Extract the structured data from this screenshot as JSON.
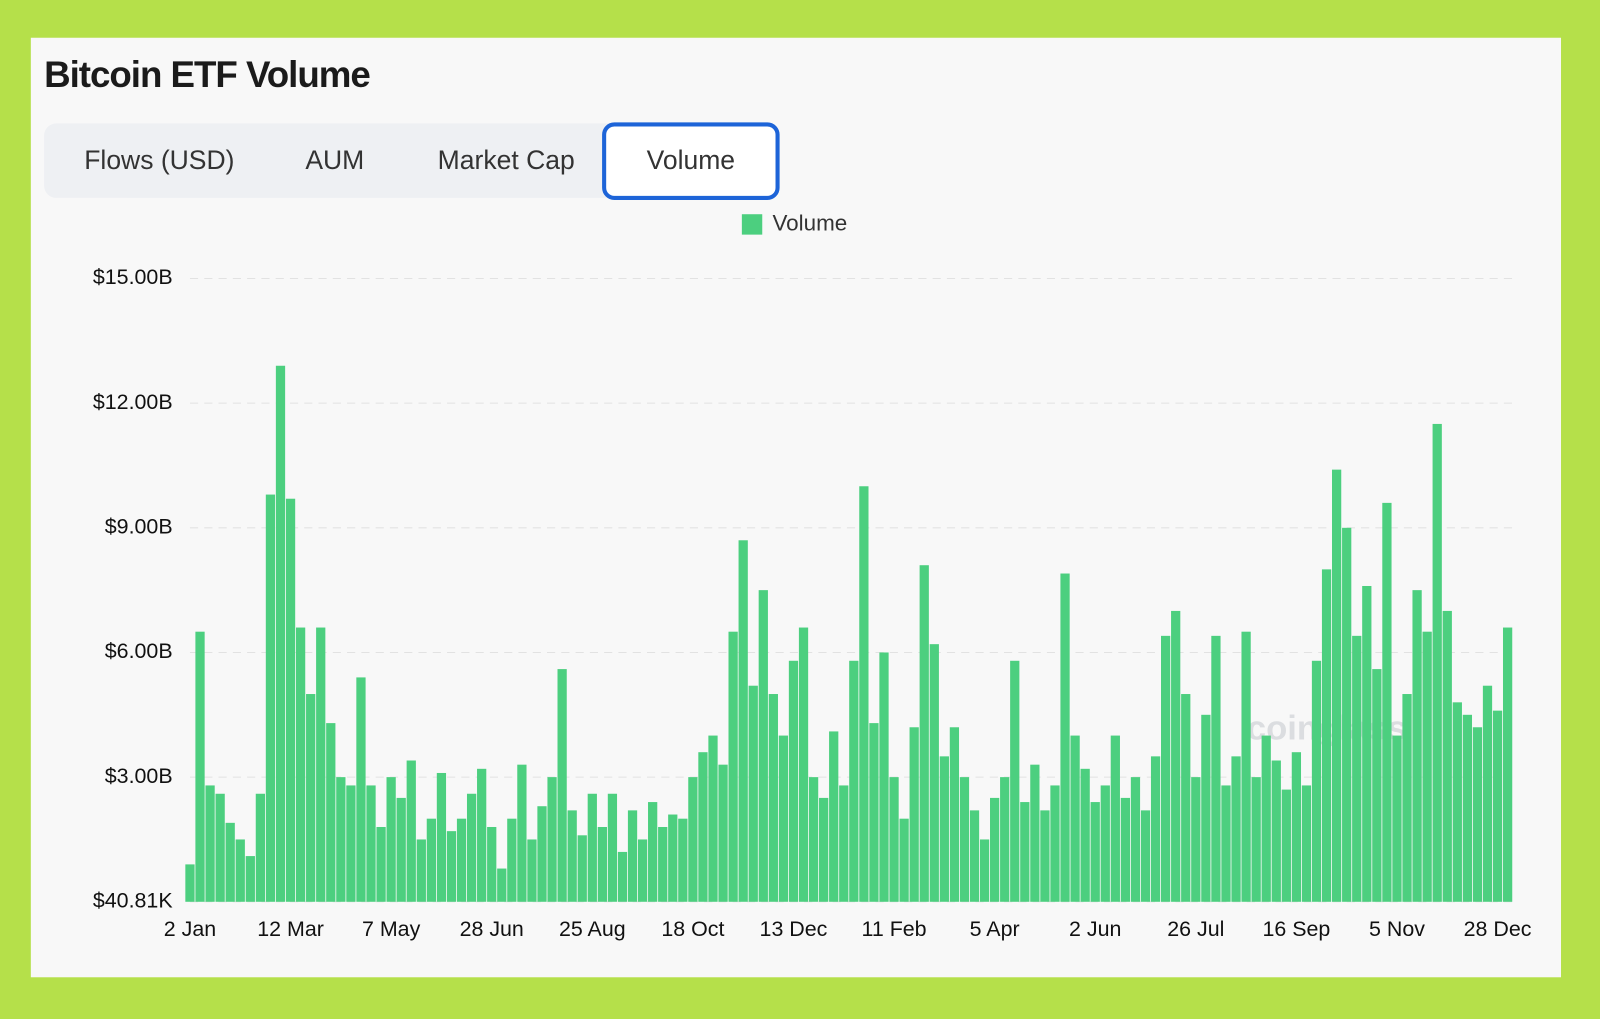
{
  "header": {
    "title": "Bitcoin ETF Volume"
  },
  "tabs": [
    "Flows (USD)",
    "AUM",
    "Market Cap",
    "Volume"
  ],
  "active_tab": 3,
  "watermark": "coinglass",
  "chart_data": {
    "type": "bar",
    "categories": [
      "2 Jan",
      null,
      null,
      null,
      null,
      null,
      null,
      null,
      null,
      null,
      "12 Mar",
      null,
      null,
      null,
      null,
      null,
      null,
      null,
      null,
      null,
      "7 May",
      null,
      null,
      null,
      null,
      null,
      null,
      null,
      null,
      null,
      "28 Jun",
      null,
      null,
      null,
      null,
      null,
      null,
      null,
      null,
      null,
      "25 Aug",
      null,
      null,
      null,
      null,
      null,
      null,
      null,
      null,
      null,
      "18 Oct",
      null,
      null,
      null,
      null,
      null,
      null,
      null,
      null,
      null,
      "13 Dec",
      null,
      null,
      null,
      null,
      null,
      null,
      null,
      null,
      null,
      "11 Feb",
      null,
      null,
      null,
      null,
      null,
      null,
      null,
      null,
      null,
      "5 Apr",
      null,
      null,
      null,
      null,
      null,
      null,
      null,
      null,
      null,
      "2 Jun",
      null,
      null,
      null,
      null,
      null,
      null,
      null,
      null,
      null,
      "26 Jul",
      null,
      null,
      null,
      null,
      null,
      null,
      null,
      null,
      null,
      "16 Sep",
      null,
      null,
      null,
      null,
      null,
      null,
      null,
      null,
      null,
      "5 Nov",
      null,
      null,
      null,
      null,
      null,
      null,
      null,
      null,
      null,
      "28 Dec",
      null
    ],
    "series": [
      {
        "name": "Volume",
        "color": "#4ccf7f",
        "values": [
          900000000.0,
          6500000000.0,
          2800000000.0,
          2600000000.0,
          1900000000.0,
          1500000000.0,
          1100000000.0,
          2600000000.0,
          9800000000.0,
          12900000000.0,
          9700000000.0,
          6600000000.0,
          5000000000.0,
          6600000000.0,
          4300000000.0,
          3000000000.0,
          2800000000.0,
          5400000000.0,
          2800000000.0,
          1800000000.0,
          3000000000.0,
          2500000000.0,
          3400000000.0,
          1500000000.0,
          2000000000.0,
          3100000000.0,
          1700000000.0,
          2000000000.0,
          2600000000.0,
          3200000000.0,
          1800000000.0,
          800000000.0,
          2000000000.0,
          3300000000.0,
          1500000000.0,
          2300000000.0,
          3000000000.0,
          5600000000.0,
          2200000000.0,
          1600000000.0,
          2600000000.0,
          1800000000.0,
          2600000000.0,
          1200000000.0,
          2200000000.0,
          1500000000.0,
          2400000000.0,
          1800000000.0,
          2100000000.0,
          2000000000.0,
          3000000000.0,
          3600000000.0,
          4000000000.0,
          3300000000.0,
          6500000000.0,
          8700000000.0,
          5200000000.0,
          7500000000.0,
          5000000000.0,
          4000000000.0,
          5800000000.0,
          6600000000.0,
          3000000000.0,
          2500000000.0,
          4100000000.0,
          2800000000.0,
          5800000000.0,
          10000000000.0,
          4300000000.0,
          6000000000.0,
          3000000000.0,
          2000000000.0,
          4200000000.0,
          8100000000.0,
          6200000000.0,
          3500000000.0,
          4200000000.0,
          3000000000.0,
          2200000000.0,
          1500000000.0,
          2500000000.0,
          3000000000.0,
          5800000000.0,
          2400000000.0,
          3300000000.0,
          2200000000.0,
          2800000000.0,
          7900000000.0,
          4000000000.0,
          3200000000.0,
          2400000000.0,
          2800000000.0,
          4000000000.0,
          2500000000.0,
          3000000000.0,
          2200000000.0,
          3500000000.0,
          6400000000.0,
          7000000000.0,
          5000000000.0,
          3000000000.0,
          4500000000.0,
          6400000000.0,
          2800000000.0,
          3500000000.0,
          6500000000.0,
          3000000000.0,
          4000000000.0,
          3400000000.0,
          2700000000.0,
          3600000000.0,
          2800000000.0,
          5800000000.0,
          8000000000.0,
          10400000000.0,
          9000000000.0,
          6400000000.0,
          7600000000.0,
          5600000000.0,
          9600000000.0,
          4000000000.0,
          5000000000.0,
          7500000000.0,
          6500000000.0,
          11500000000.0,
          7000000000.0,
          4800000000.0,
          4500000000.0,
          4200000000.0,
          5200000000.0,
          4600000000.0,
          6600000000.0
        ]
      }
    ],
    "ylim": [
      40810,
      15000000000.0
    ],
    "yticks": [
      {
        "value": 40810,
        "label": "$40.81K"
      },
      {
        "value": 3000000000.0,
        "label": "$3.00B"
      },
      {
        "value": 6000000000.0,
        "label": "$6.00B"
      },
      {
        "value": 9000000000.0,
        "label": "$9.00B"
      },
      {
        "value": 12000000000.0,
        "label": "$12.00B"
      },
      {
        "value": 15000000000.0,
        "label": "$15.00B"
      }
    ],
    "grid": true,
    "legend": "top"
  }
}
